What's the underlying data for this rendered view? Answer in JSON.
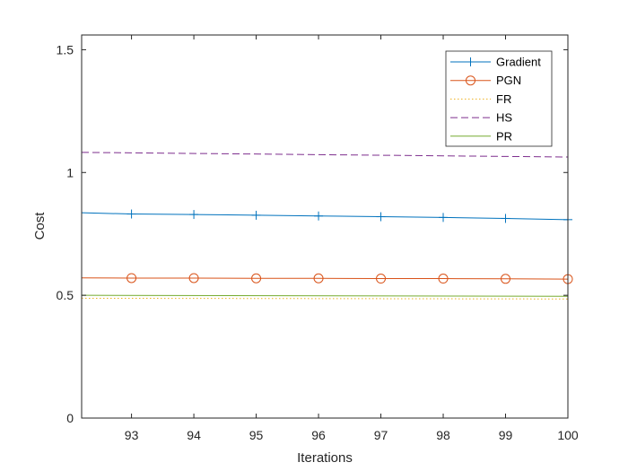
{
  "chart_data": {
    "type": "line",
    "xlabel": "Iterations",
    "ylabel": "Cost",
    "xlim": [
      92.2,
      100
    ],
    "ylim": [
      0,
      1.56
    ],
    "x_ticks": [
      93,
      94,
      95,
      96,
      97,
      98,
      99,
      100
    ],
    "y_ticks": [
      0,
      0.5,
      1,
      1.5
    ],
    "y_tick_labels": [
      "0",
      "0.5",
      "1",
      "1.5"
    ],
    "grid": false,
    "legend_position": "top-right",
    "series": [
      {
        "name": "Gradient",
        "color": "#0072BD",
        "dash": "solid",
        "marker": "plus",
        "x": [
          92.2,
          93,
          94,
          95,
          96,
          97,
          98,
          99,
          100
        ],
        "values": [
          0.836,
          0.831,
          0.829,
          0.826,
          0.823,
          0.82,
          0.817,
          0.813,
          0.808
        ]
      },
      {
        "name": "PGN",
        "color": "#D95319",
        "dash": "solid",
        "marker": "circle",
        "x": [
          92.2,
          93,
          94,
          95,
          96,
          97,
          98,
          99,
          100
        ],
        "values": [
          0.571,
          0.57,
          0.57,
          0.569,
          0.569,
          0.568,
          0.568,
          0.567,
          0.566
        ]
      },
      {
        "name": "FR",
        "color": "#EDB120",
        "dash": "dotted",
        "marker": "none",
        "x": [
          92.2,
          100
        ],
        "values": [
          0.488,
          0.485
        ]
      },
      {
        "name": "HS",
        "color": "#7E2F8E",
        "dash": "dashed",
        "marker": "none",
        "x": [
          92.2,
          100
        ],
        "values": [
          1.082,
          1.063
        ]
      },
      {
        "name": "PR",
        "color": "#77AC30",
        "dash": "solid",
        "marker": "none",
        "x": [
          92.2,
          100
        ],
        "values": [
          0.5,
          0.496
        ]
      }
    ]
  }
}
